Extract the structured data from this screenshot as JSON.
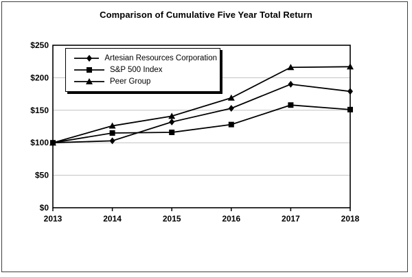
{
  "chart_data": {
    "type": "line",
    "title": "Comparison of Cumulative Five Year Total Return",
    "categories": [
      "2013",
      "2014",
      "2015",
      "2016",
      "2017",
      "2018"
    ],
    "series": [
      {
        "name": "Artesian Resources Corporation",
        "marker": "diamond",
        "values": [
          100,
          103,
          132,
          153,
          190,
          179
        ]
      },
      {
        "name": "S&P 500 Index",
        "marker": "square",
        "values": [
          100,
          115,
          116,
          128,
          158,
          151
        ]
      },
      {
        "name": "Peer Group",
        "marker": "triangle",
        "values": [
          100,
          126,
          141,
          169,
          216,
          217
        ]
      }
    ],
    "yticks": [
      {
        "value": 0,
        "label": "$0"
      },
      {
        "value": 50,
        "label": "$50"
      },
      {
        "value": 100,
        "label": "$100"
      },
      {
        "value": 150,
        "label": "$150"
      },
      {
        "value": 200,
        "label": "$200"
      },
      {
        "value": 250,
        "label": "$250"
      }
    ],
    "ylim": [
      0,
      250
    ],
    "xlabel": "",
    "ylabel": "",
    "grid": true,
    "legend_position": "top-left-inside",
    "colors": {
      "series": "#000000",
      "gridline": "#c0c0c0",
      "frame": "#000000",
      "background": "#ffffff"
    }
  }
}
